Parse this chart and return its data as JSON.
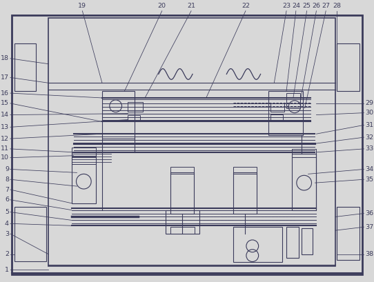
{
  "bg_color": "#d8d8d8",
  "line_color": "#3a3a5a",
  "fig_width": 5.42,
  "fig_height": 4.09,
  "dpi": 100
}
